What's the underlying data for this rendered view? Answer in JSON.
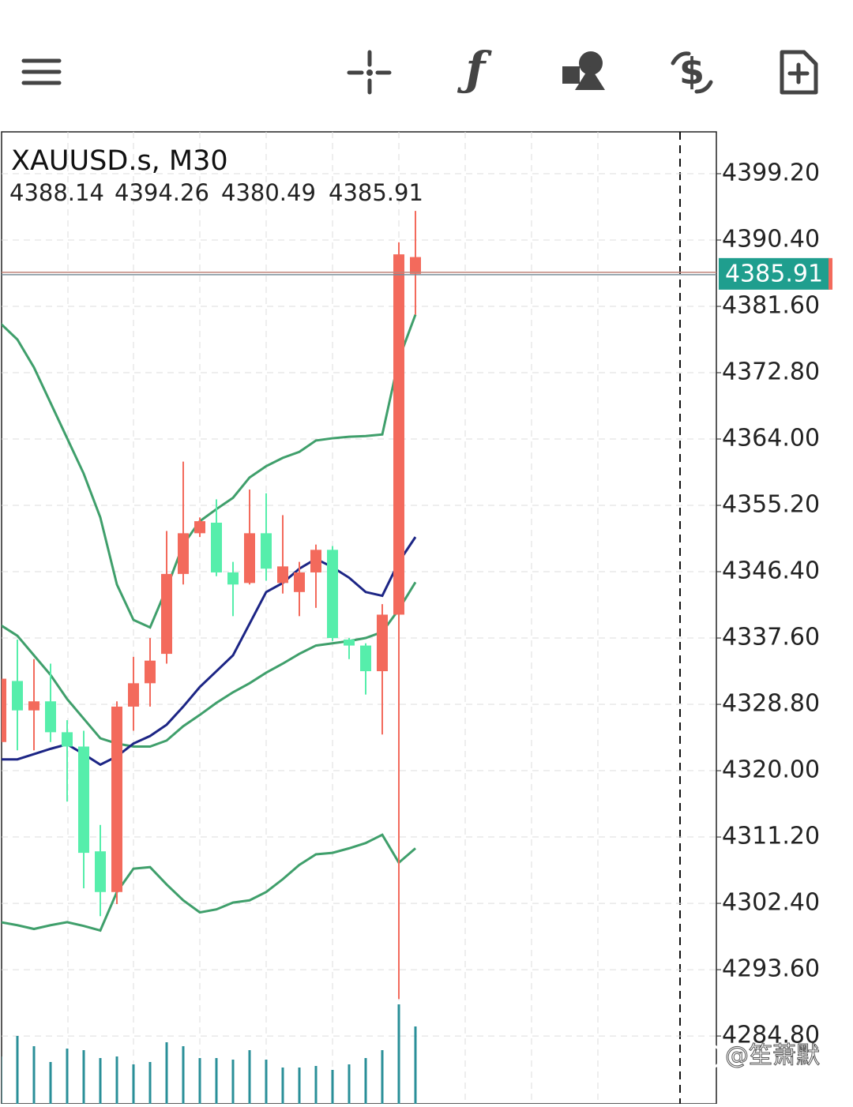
{
  "chart_data": {
    "type": "candlestick",
    "title": "XAUUSD.s, M30",
    "open": [
      4332.2,
      4328.0,
      4329.2,
      4325.1,
      4323.2,
      4309.1,
      4303.9,
      4328.5,
      4331.6,
      4334.6,
      4346.1,
      4351.5,
      4353.1,
      4346.3,
      4344.7,
      4351.5,
      4346.8,
      4347.1,
      4346.3,
      4349.3,
      4337.6,
      4336.6,
      4333.2,
      4340.7,
      4388.5,
      4388.14
    ],
    "high": [
      4333.7,
      4337.4,
      4334.8,
      4334.2,
      4326.7,
      4325.3,
      4312.8,
      4329.2,
      4335.1,
      4337.6,
      4351.8,
      4361.0,
      4353.6,
      4356.0,
      4347.7,
      4357.3,
      4356.8,
      4353.9,
      4347.7,
      4350.0,
      4349.8,
      4337.6,
      4336.9,
      4342.1,
      4390.1,
      4394.26
    ],
    "low": [
      4322.7,
      4322.7,
      4322.7,
      4323.8,
      4315.9,
      4304.4,
      4300.7,
      4302.3,
      4325.3,
      4328.5,
      4334.2,
      4344.7,
      4351.0,
      4345.8,
      4340.5,
      4344.7,
      4345.2,
      4343.5,
      4340.5,
      4341.6,
      4337.2,
      4334.8,
      4330.1,
      4324.8,
      4289.7,
      4380.49
    ],
    "close": [
      4323.8,
      4331.9,
      4328.0,
      4329.2,
      4325.1,
      4323.2,
      4309.3,
      4303.9,
      4328.5,
      4331.6,
      4335.5,
      4346.1,
      4351.5,
      4352.9,
      4346.3,
      4344.9,
      4351.5,
      4344.9,
      4343.7,
      4346.3,
      4349.3,
      4337.4,
      4336.6,
      4333.2,
      4340.7,
      4385.91
    ],
    "up_color": "#56eeab",
    "down_color": "#f36a5c",
    "ylim": [
      4275.8,
      4404.75
    ],
    "yticks": [
      {
        "value": 4399.2,
        "label": "4399.20"
      },
      {
        "value": 4390.4,
        "label": "4390.40"
      },
      {
        "value": 4381.6,
        "label": "4381.60"
      },
      {
        "value": 4372.8,
        "label": "4372.80"
      },
      {
        "value": 4364,
        "label": "4364.00"
      },
      {
        "value": 4355.2,
        "label": "4355.20"
      },
      {
        "value": 4346.4,
        "label": "4346.40"
      },
      {
        "value": 4337.6,
        "label": "4337.60"
      },
      {
        "value": 4328.8,
        "label": "4328.80"
      },
      {
        "value": 4320,
        "label": "4320.00"
      },
      {
        "value": 4311.2,
        "label": "4311.20"
      },
      {
        "value": 4302.4,
        "label": "4302.40"
      },
      {
        "value": 4293.6,
        "label": "4293.60"
      },
      {
        "value": 4284.8,
        "label": "4284.80"
      }
    ],
    "grid": true,
    "last_price_color": "#1f9e8e",
    "indicators": [
      {
        "color": "#3f9f6b",
        "values": [
          4379.3,
          4377.2,
          4373.5,
          4368.8,
          4364.1,
          4359.4,
          4353.6,
          4344.7,
          4340.0,
          4339.0,
          4344.2,
          4350.0,
          4353.1,
          4354.7,
          4356.2,
          4358.9,
          4360.4,
          4361.5,
          4362.3,
          4363.8,
          4364.1,
          4364.3,
          4364.4,
          4364.6,
          4374.6,
          4380.5
        ]
      },
      {
        "color": "#3f9f6b",
        "values": [
          4339.3,
          4337.9,
          4335.3,
          4332.7,
          4329.5,
          4326.9,
          4324.3,
          4323.6,
          4323.2,
          4323.2,
          4324.0,
          4325.9,
          4327.4,
          4329.0,
          4330.4,
          4331.6,
          4333.0,
          4334.2,
          4335.5,
          4336.6,
          4336.9,
          4337.2,
          4337.6,
          4338.4,
          4341.4,
          4345.0
        ]
      },
      {
        "color": "#3f9f6b",
        "values": [
          4299.9,
          4299.5,
          4299.0,
          4299.5,
          4299.9,
          4299.4,
          4298.8,
          4303.9,
          4307.0,
          4307.2,
          4304.9,
          4302.8,
          4301.2,
          4301.6,
          4302.5,
          4302.8,
          4303.9,
          4305.6,
          4307.5,
          4308.9,
          4309.1,
          4309.7,
          4310.4,
          4311.5,
          4307.8,
          4309.7
        ]
      },
      {
        "color": "#1c2585",
        "values": [
          4321.5,
          4321.5,
          4322.2,
          4322.9,
          4323.5,
          4322.2,
          4320.8,
          4321.9,
          4323.6,
          4324.6,
          4326.1,
          4328.5,
          4331.1,
          4333.2,
          4335.3,
          4339.5,
          4343.7,
          4344.9,
          4346.8,
          4348.1,
          4347.0,
          4345.6,
          4343.7,
          4343.2,
          4347.7,
          4351.0
        ]
      }
    ],
    "volume": [
      60,
      86,
      73,
      53,
      70,
      68,
      58,
      60,
      50,
      53,
      78,
      73,
      58,
      58,
      56,
      68,
      56,
      46,
      46,
      48,
      43,
      50,
      58,
      68,
      126,
      98
    ],
    "volume_lim": [
      0,
      1231
    ],
    "volume_color": "#2a8f98",
    "watermark": "@笙萧默"
  }
}
